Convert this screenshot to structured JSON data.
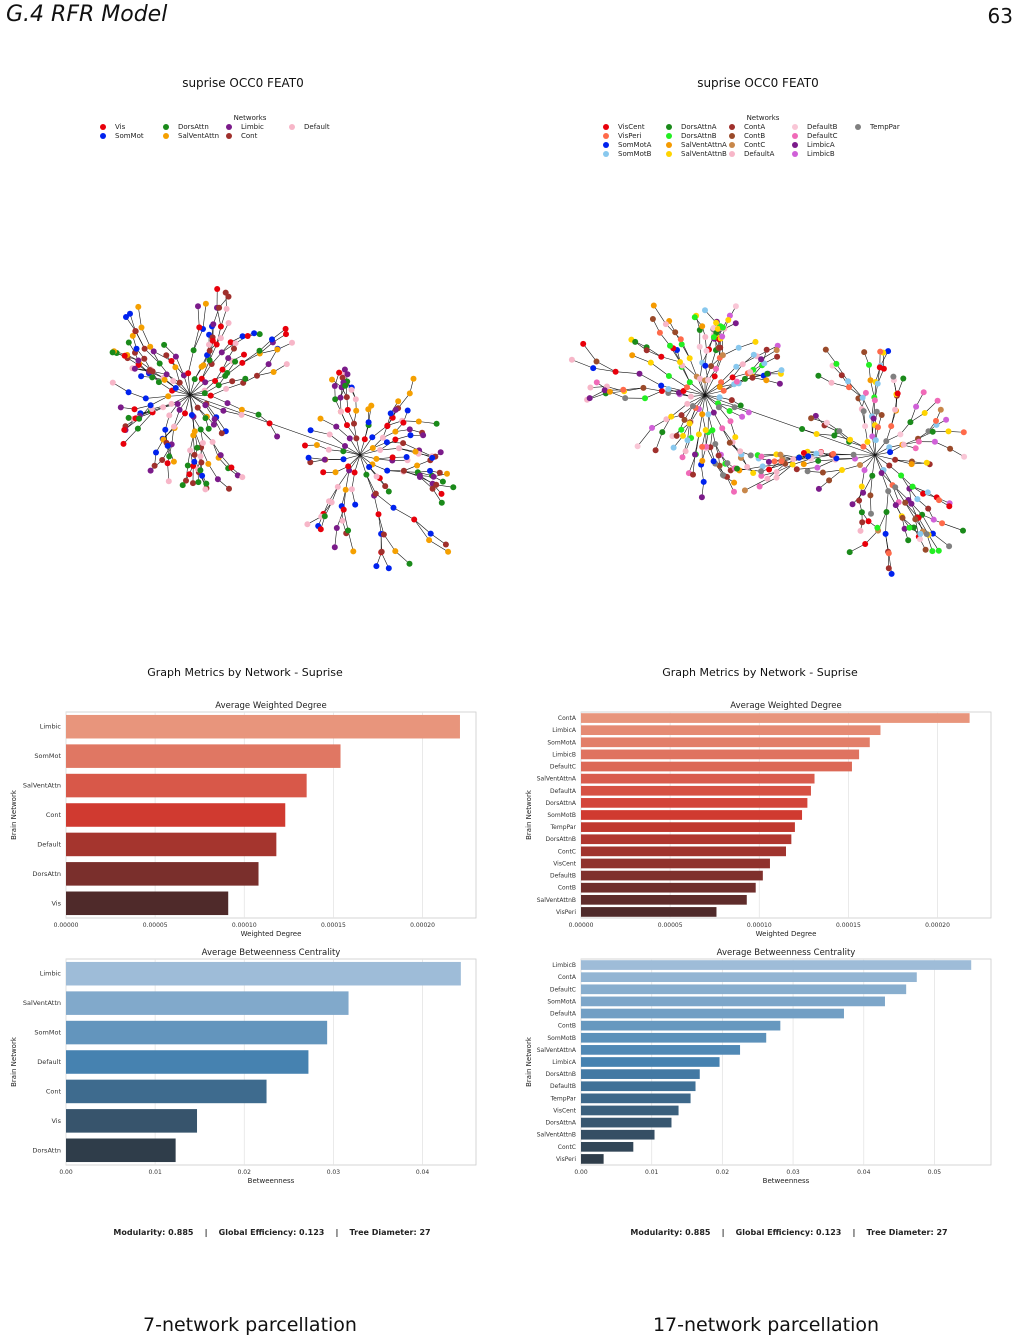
{
  "header": {
    "title": "G.4   RFR Model",
    "page_number": "63"
  },
  "panels": [
    {
      "graph_title": "suprise OCC0 FEAT0",
      "legend_title": "Networks",
      "legend": [
        {
          "label": "Vis",
          "color": "#e8000b"
        },
        {
          "label": "SomMot",
          "color": "#0022ee"
        },
        {
          "label": "DorsAttn",
          "color": "#1a8a1a"
        },
        {
          "label": "SalVentAttn",
          "color": "#f5a000"
        },
        {
          "label": "Limbic",
          "color": "#7b1b8a"
        },
        {
          "label": "Cont",
          "color": "#a0302c"
        },
        {
          "label": "Default",
          "color": "#f7b6c8"
        }
      ],
      "metrics_title": "Graph Metrics by Network - Suprise",
      "footer": "Modularity: 0.885    |    Global Efficiency: 0.123    |    Tree Diameter: 27",
      "caption": "7-network parcellation"
    },
    {
      "graph_title": "suprise OCC0 FEAT0",
      "legend_title": "Networks",
      "legend": [
        {
          "label": "VisCent",
          "color": "#e8000b"
        },
        {
          "label": "VisPeri",
          "color": "#ff6a4a"
        },
        {
          "label": "SomMotA",
          "color": "#0022ee"
        },
        {
          "label": "SomMotB",
          "color": "#88c8ee"
        },
        {
          "label": "DorsAttnA",
          "color": "#1a8a1a"
        },
        {
          "label": "DorsAttnB",
          "color": "#22ee22"
        },
        {
          "label": "SalVentAttnA",
          "color": "#f59a00"
        },
        {
          "label": "SalVentAttnB",
          "color": "#ffd400"
        },
        {
          "label": "ContA",
          "color": "#a0302c"
        },
        {
          "label": "ContB",
          "color": "#9a4a2a"
        },
        {
          "label": "ContC",
          "color": "#c8874a"
        },
        {
          "label": "DefaultA",
          "color": "#f7b6c8"
        },
        {
          "label": "DefaultB",
          "color": "#f9c6d6"
        },
        {
          "label": "DefaultC",
          "color": "#f06ab8"
        },
        {
          "label": "LimbicA",
          "color": "#7b1b8a"
        },
        {
          "label": "LimbicB",
          "color": "#d060d8"
        },
        {
          "label": "TempPar",
          "color": "#808080"
        }
      ],
      "metrics_title": "Graph Metrics by Network - Suprise",
      "footer": "Modularity: 0.885    |    Global Efficiency: 0.123    |    Tree Diameter: 27",
      "caption": "17-network parcellation"
    }
  ],
  "chart_data": [
    {
      "type": "bar",
      "orientation": "horizontal",
      "title": "Average Weighted Degree",
      "xlabel": "Weighted Degree",
      "ylabel": "Brain Network",
      "categories": [
        "Limbic",
        "SomMot",
        "SalVentAttn",
        "Cont",
        "Default",
        "DorsAttn",
        "Vis"
      ],
      "values": [
        0.000221,
        0.000154,
        0.000135,
        0.000123,
        0.000118,
        0.000108,
        9.1e-05
      ],
      "xlim": [
        0,
        0.00023
      ],
      "xticks": [
        0,
        5e-05,
        0.0001,
        0.00015,
        0.0002
      ],
      "xtick_labels": [
        "0.00000",
        "0.00005",
        "0.00010",
        "0.00015",
        "0.00020"
      ],
      "palette": "reds",
      "grid": true
    },
    {
      "type": "bar",
      "orientation": "horizontal",
      "title": "Average Betweenness Centrality",
      "xlabel": "Betweenness",
      "ylabel": "Brain Network",
      "categories": [
        "Limbic",
        "SalVentAttn",
        "SomMot",
        "Default",
        "Cont",
        "Vis",
        "DorsAttn"
      ],
      "values": [
        0.0443,
        0.0317,
        0.0293,
        0.0272,
        0.0225,
        0.0147,
        0.0123
      ],
      "xlim": [
        0,
        0.046
      ],
      "xticks": [
        0,
        0.01,
        0.02,
        0.03,
        0.04
      ],
      "xtick_labels": [
        "0.00",
        "0.01",
        "0.02",
        "0.03",
        "0.04"
      ],
      "palette": "blues",
      "grid": true
    },
    {
      "type": "bar",
      "orientation": "horizontal",
      "title": "Average Weighted Degree",
      "xlabel": "Weighted Degree",
      "ylabel": "Brain Network",
      "categories": [
        "ContA",
        "LimbicA",
        "SomMotA",
        "LimbicB",
        "DefaultC",
        "SalVentAttnA",
        "DefaultA",
        "DorsAttnA",
        "SomMotB",
        "TempPar",
        "DorsAttnB",
        "ContC",
        "VisCent",
        "DefaultB",
        "ContB",
        "SalVentAttnB",
        "VisPeri"
      ],
      "values": [
        0.000218,
        0.000168,
        0.000162,
        0.000156,
        0.000152,
        0.000131,
        0.000129,
        0.000127,
        0.000124,
        0.00012,
        0.000118,
        0.000115,
        0.000106,
        0.000102,
        9.8e-05,
        9.3e-05,
        7.6e-05
      ],
      "xlim": [
        0,
        0.00023
      ],
      "xticks": [
        0,
        5e-05,
        0.0001,
        0.00015,
        0.0002
      ],
      "xtick_labels": [
        "0.00000",
        "0.00005",
        "0.00010",
        "0.00015",
        "0.00020"
      ],
      "palette": "reds",
      "grid": true
    },
    {
      "type": "bar",
      "orientation": "horizontal",
      "title": "Average Betweenness Centrality",
      "xlabel": "Betweenness",
      "ylabel": "Brain Network",
      "categories": [
        "LimbicB",
        "ContA",
        "DefaultC",
        "SomMotA",
        "DefaultA",
        "ContB",
        "SomMotB",
        "SalVentAttnA",
        "LimbicA",
        "DorsAttnB",
        "DefaultB",
        "TempPar",
        "VisCent",
        "DorsAttnA",
        "SalVentAttnB",
        "ContC",
        "VisPeri"
      ],
      "values": [
        0.0552,
        0.0475,
        0.046,
        0.043,
        0.0372,
        0.0282,
        0.0262,
        0.0225,
        0.0196,
        0.0168,
        0.0162,
        0.0155,
        0.0138,
        0.0128,
        0.0104,
        0.0074,
        0.0032
      ],
      "xlim": [
        0,
        0.058
      ],
      "xticks": [
        0,
        0.01,
        0.02,
        0.03,
        0.04,
        0.05
      ],
      "xtick_labels": [
        "0.00",
        "0.01",
        "0.02",
        "0.03",
        "0.04",
        "0.05"
      ],
      "palette": "blues",
      "grid": true
    }
  ]
}
